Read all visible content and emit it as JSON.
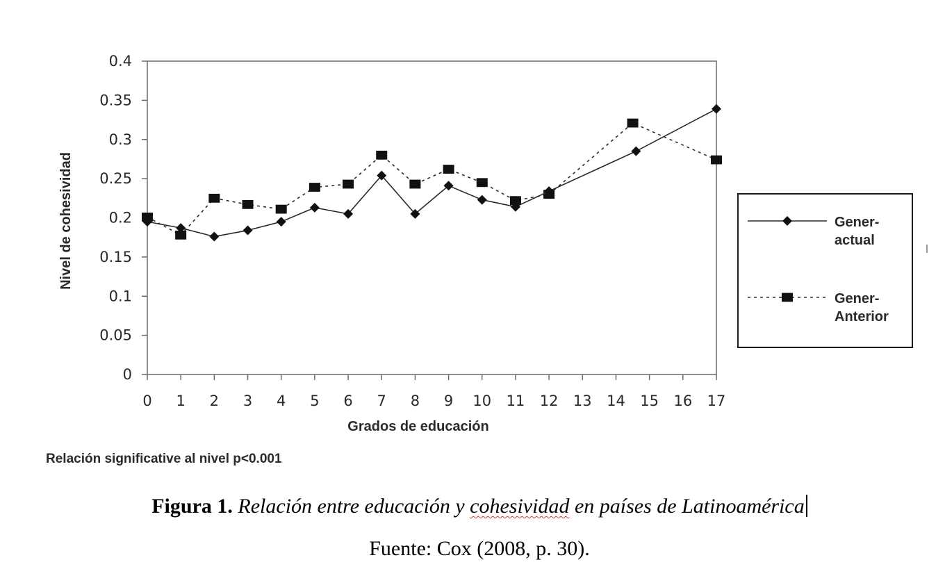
{
  "chart_data": {
    "type": "line",
    "xlabel": "Grados de educación",
    "ylabel": "Nivel de cohesividad",
    "xlim": [
      0,
      17
    ],
    "ylim": [
      0,
      0.4
    ],
    "x_ticks": [
      "0",
      "1",
      "2",
      "3",
      "4",
      "5",
      "6",
      "7",
      "8",
      "9",
      "10",
      "11",
      "12",
      "13",
      "14",
      "15",
      "16",
      "17"
    ],
    "y_ticks": [
      "0",
      "0.05",
      "0.1",
      "0.15",
      "0.2",
      "0.25",
      "0.3",
      "0.35",
      "0.4"
    ],
    "grid": false,
    "legend_position": "right",
    "series": [
      {
        "name": "Gener- actual",
        "legend_lines": [
          "Gener-",
          "actual"
        ],
        "style": "solid",
        "marker": "diamond",
        "points": [
          {
            "x": 0,
            "y": 0.195
          },
          {
            "x": 1,
            "y": 0.187
          },
          {
            "x": 2,
            "y": 0.176
          },
          {
            "x": 3,
            "y": 0.184
          },
          {
            "x": 4,
            "y": 0.195
          },
          {
            "x": 5,
            "y": 0.213
          },
          {
            "x": 6,
            "y": 0.205
          },
          {
            "x": 7,
            "y": 0.254
          },
          {
            "x": 8,
            "y": 0.205
          },
          {
            "x": 9,
            "y": 0.241
          },
          {
            "x": 10,
            "y": 0.223
          },
          {
            "x": 11,
            "y": 0.214
          },
          {
            "x": 12,
            "y": 0.234
          },
          {
            "x": 14.6,
            "y": 0.285
          },
          {
            "x": 17,
            "y": 0.339
          }
        ]
      },
      {
        "name": "Gener- Anterior",
        "legend_lines": [
          "Gener-",
          "Anterior"
        ],
        "style": "dotted",
        "marker": "square",
        "points": [
          {
            "x": 0,
            "y": 0.201
          },
          {
            "x": 1,
            "y": 0.178
          },
          {
            "x": 2,
            "y": 0.225
          },
          {
            "x": 3,
            "y": 0.217
          },
          {
            "x": 4,
            "y": 0.211
          },
          {
            "x": 5,
            "y": 0.239
          },
          {
            "x": 6,
            "y": 0.243
          },
          {
            "x": 7,
            "y": 0.28
          },
          {
            "x": 8,
            "y": 0.243
          },
          {
            "x": 9,
            "y": 0.262
          },
          {
            "x": 10,
            "y": 0.245
          },
          {
            "x": 11,
            "y": 0.222
          },
          {
            "x": 12,
            "y": 0.23
          },
          {
            "x": 14.5,
            "y": 0.321
          },
          {
            "x": 17,
            "y": 0.274
          }
        ]
      }
    ],
    "colors": {
      "line": "#2a2a2a",
      "marker": "#111111"
    }
  },
  "note": "Relación significative al nivel p<0.001",
  "caption": {
    "label": "Figura 1.",
    "title_before": "Relación entre educación y ",
    "title_underlined": "cohesividad",
    "title_after": " en países de Latinoamérica"
  },
  "source": "Fuente: Cox (2008, p. 30)."
}
